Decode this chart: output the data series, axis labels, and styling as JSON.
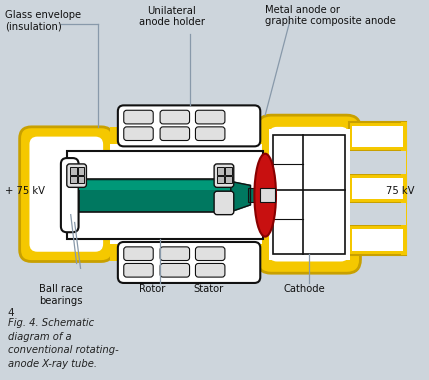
{
  "bg_color": "#cdd5dc",
  "title_number": "4",
  "caption": "Fig. 4. Schematic\ndiagram of a\nconventional rotating-\nanode X-ray tube.",
  "labels": {
    "glass_envelope": "Glass envelope\n(insulation)",
    "unilateral": "Unilateral\nanode holder",
    "metal_anode": "Metal anode or\ngraphite composite anode",
    "plus_75kv": "+ 75 kV",
    "minus_75kv": "75 kV",
    "ball_race": "Ball race\nbearings",
    "rotor": "Rotor",
    "stator": "Stator",
    "cathode": "Cathode"
  },
  "colors": {
    "yellow": "#F5C800",
    "yellow_dark": "#C8A000",
    "green": "#007860",
    "red": "#C81010",
    "white": "#FFFFFF",
    "black": "#111111",
    "gray_light": "#E0E0E0",
    "gray_med": "#BBBBBB",
    "gray_dark": "#888888",
    "bg": "#cdd5dc",
    "line": "#888899"
  }
}
